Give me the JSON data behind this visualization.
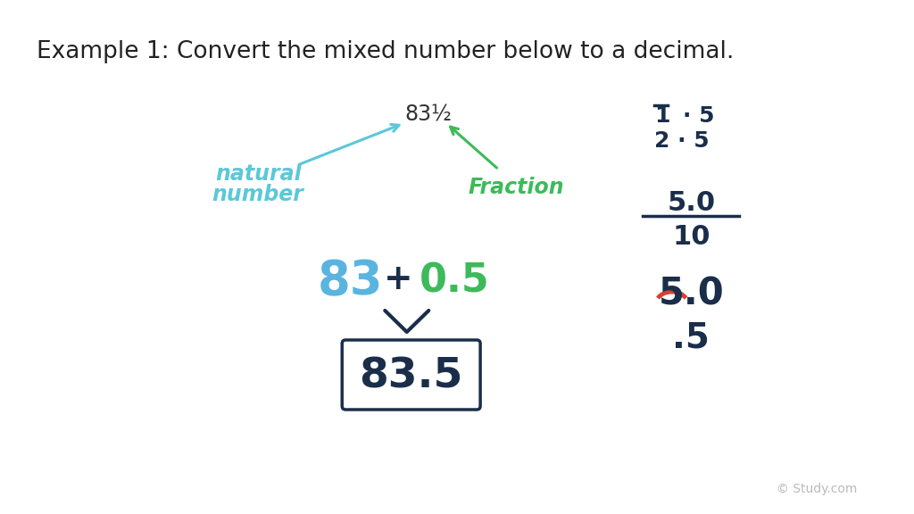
{
  "bg_color": "#ffffff",
  "title": "Example 1: Convert the mixed number below to a decimal.",
  "title_color": "#222222",
  "title_fontsize": 19,
  "mixed_number": "83½",
  "mixed_number_color": "#333333",
  "natural_label_line1": "natural",
  "natural_label_line2": "number",
  "natural_color": "#5bc8d8",
  "fraction_label": "Fraction",
  "fraction_color": "#3dba5a",
  "eq_83_color": "#5ab4e0",
  "eq_plus_color": "#222222",
  "eq_05_color": "#3dba5a",
  "result_color": "#1a2e4a",
  "right_color": "#1a2e4a",
  "red_color": "#d94030",
  "watermark": "© Study.com"
}
